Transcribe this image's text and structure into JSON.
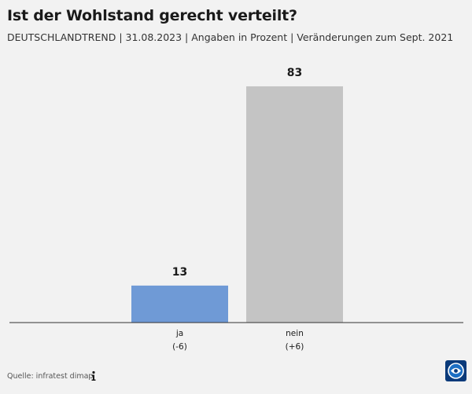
{
  "header": {
    "title": "Ist der Wohlstand gerecht verteilt?",
    "subtitle": "DEUTSCHLANDTREND | 31.08.2023 | Angaben in Prozent | Veränderungen zum Sept. 2021"
  },
  "chart_data": {
    "type": "bar",
    "title": "Ist der Wohlstand gerecht verteilt?",
    "categories": [
      "ja",
      "nein"
    ],
    "values": [
      13,
      83
    ],
    "changes": [
      "(-6)",
      "(+6)"
    ],
    "colors": [
      "#6f9ad6",
      "#c4c4c4"
    ],
    "ylim": [
      0,
      83
    ],
    "xlabel": "",
    "ylabel": "",
    "grid": false
  },
  "footer": {
    "source": "Quelle: infratest dimap",
    "info_icon": "info-icon",
    "logo_icon": "broadcaster-logo-icon"
  }
}
